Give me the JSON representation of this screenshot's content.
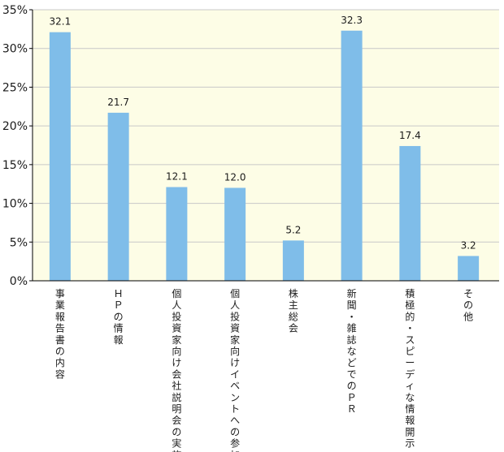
{
  "chart_data": {
    "type": "bar",
    "categories": [
      "事業報告書の内容",
      "ＨＰの情報",
      "個人投資家向け会社説明会の実施",
      "個人投資家向けイベントへの参加",
      "株主総会",
      "新聞・雑誌などでのＰＲ",
      "積極的・スピーディな情報開示",
      "その他"
    ],
    "values": [
      32.1,
      21.7,
      12.1,
      12.0,
      5.2,
      32.3,
      17.4,
      3.2
    ],
    "value_labels": [
      "32.1",
      "21.7",
      "12.1",
      "12.0",
      "5.2",
      "32.3",
      "17.4",
      "3.2"
    ],
    "yticks": [
      "0%",
      "5%",
      "10%",
      "15%",
      "20%",
      "25%",
      "30%",
      "35%"
    ],
    "ylim": [
      0,
      35
    ],
    "grid": true,
    "title": "",
    "xlabel": "",
    "ylabel": "",
    "colors": {
      "plot_background": "#fdfde6",
      "bar": "#7fbde9",
      "grid": "#c8c8c8",
      "axis": "#000000"
    }
  }
}
